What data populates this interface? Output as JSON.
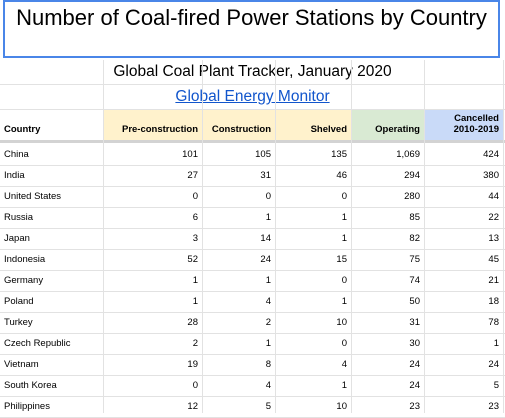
{
  "sheet": {
    "title": "Number of Coal-fired Power Stations by Country",
    "subtitle": "Global Coal Plant Tracker, January 2020",
    "source_link": "Global Energy Monitor"
  },
  "columns": [
    {
      "key": "country",
      "label": "Country"
    },
    {
      "key": "preconstruction",
      "label": "Pre-construction"
    },
    {
      "key": "construction",
      "label": "Construction"
    },
    {
      "key": "shelved",
      "label": "Shelved"
    },
    {
      "key": "operating",
      "label": "Operating"
    },
    {
      "key": "cancelled",
      "label_line1": "Cancelled",
      "label_line2": "2010-2019"
    }
  ],
  "rows": [
    {
      "country": "China",
      "preconstruction": "101",
      "construction": "105",
      "shelved": "135",
      "operating": "1,069",
      "cancelled": "424"
    },
    {
      "country": "India",
      "preconstruction": "27",
      "construction": "31",
      "shelved": "46",
      "operating": "294",
      "cancelled": "380"
    },
    {
      "country": "United States",
      "preconstruction": "0",
      "construction": "0",
      "shelved": "0",
      "operating": "280",
      "cancelled": "44"
    },
    {
      "country": "Russia",
      "preconstruction": "6",
      "construction": "1",
      "shelved": "1",
      "operating": "85",
      "cancelled": "22"
    },
    {
      "country": "Japan",
      "preconstruction": "3",
      "construction": "14",
      "shelved": "1",
      "operating": "82",
      "cancelled": "13"
    },
    {
      "country": "Indonesia",
      "preconstruction": "52",
      "construction": "24",
      "shelved": "15",
      "operating": "75",
      "cancelled": "45"
    },
    {
      "country": "Germany",
      "preconstruction": "1",
      "construction": "1",
      "shelved": "0",
      "operating": "74",
      "cancelled": "21"
    },
    {
      "country": "Poland",
      "preconstruction": "1",
      "construction": "4",
      "shelved": "1",
      "operating": "50",
      "cancelled": "18"
    },
    {
      "country": "Turkey",
      "preconstruction": "28",
      "construction": "2",
      "shelved": "10",
      "operating": "31",
      "cancelled": "78"
    },
    {
      "country": "Czech Republic",
      "preconstruction": "2",
      "construction": "1",
      "shelved": "0",
      "operating": "30",
      "cancelled": "1"
    },
    {
      "country": "Vietnam",
      "preconstruction": "19",
      "construction": "8",
      "shelved": "4",
      "operating": "24",
      "cancelled": "24"
    },
    {
      "country": "South Korea",
      "preconstruction": "0",
      "construction": "4",
      "shelved": "1",
      "operating": "24",
      "cancelled": "5"
    },
    {
      "country": "Philippines",
      "preconstruction": "12",
      "construction": "5",
      "shelved": "10",
      "operating": "23",
      "cancelled": "23"
    }
  ],
  "colors": {
    "title_border": "#4a86e8",
    "header_yellow": "#fff2cc",
    "header_green": "#d9ead3",
    "header_blue": "#c9daf8",
    "link": "#1155cc",
    "grid": "#e2e2e2"
  }
}
